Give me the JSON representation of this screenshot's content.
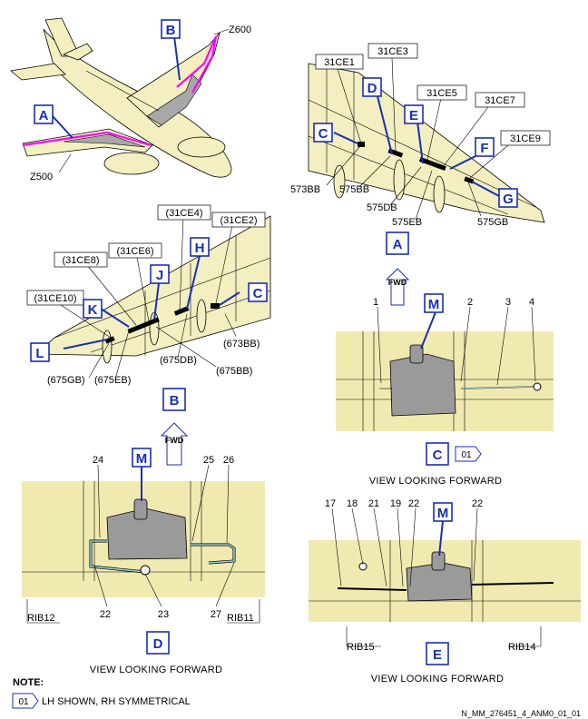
{
  "zones": {
    "z600": "Z600",
    "z500": "Z500"
  },
  "views": {
    "a": "A",
    "b": "B",
    "c": "C",
    "d": "D",
    "e": "E"
  },
  "detail_letters": {
    "c": "C",
    "d": "D",
    "e": "E",
    "f": "F",
    "g": "G",
    "h": "H",
    "j": "J",
    "k": "K",
    "l": "L",
    "m": "M"
  },
  "fwd": "FWD",
  "view_a_labels": {
    "e1": "31CE1",
    "e3": "31CE3",
    "e5": "31CE5",
    "e7": "31CE7",
    "e9": "31CE9",
    "b573": "573BB",
    "b575": "575BB",
    "d575": "575DB",
    "eb575": "575EB",
    "gb575": "575GB"
  },
  "view_b_labels": {
    "e4": "(31CE4)",
    "e2": "(31CE2)",
    "e8": "(31CE8)",
    "e6": "(31CE6)",
    "e10": "(31CE10)",
    "bb673": "(673BB)",
    "db675": "(675DB)",
    "bb675": "(675BB)",
    "gb675": "(675GB)",
    "eb675": "(675EB)"
  },
  "refs": {
    "c1": "1",
    "c2": "2",
    "c3": "3",
    "c4": "4",
    "d24": "24",
    "d25": "25",
    "d26": "26",
    "d22": "22",
    "d23": "23",
    "d27": "27",
    "e17": "17",
    "e18": "18",
    "e21": "21",
    "e19": "19",
    "e22a": "22",
    "e22b": "22"
  },
  "ribs": {
    "rib12": "RIB12",
    "rib11": "RIB11",
    "rib15": "RIB15",
    "rib14": "RIB14"
  },
  "note_tag": "01",
  "view_caption": "VIEW LOOKING FORWARD",
  "note_title": "NOTE:",
  "note_text": "LH SHOWN, RH SYMMETRICAL",
  "doc_ref": "N_MM_276451_4_ANM0_01_01"
}
